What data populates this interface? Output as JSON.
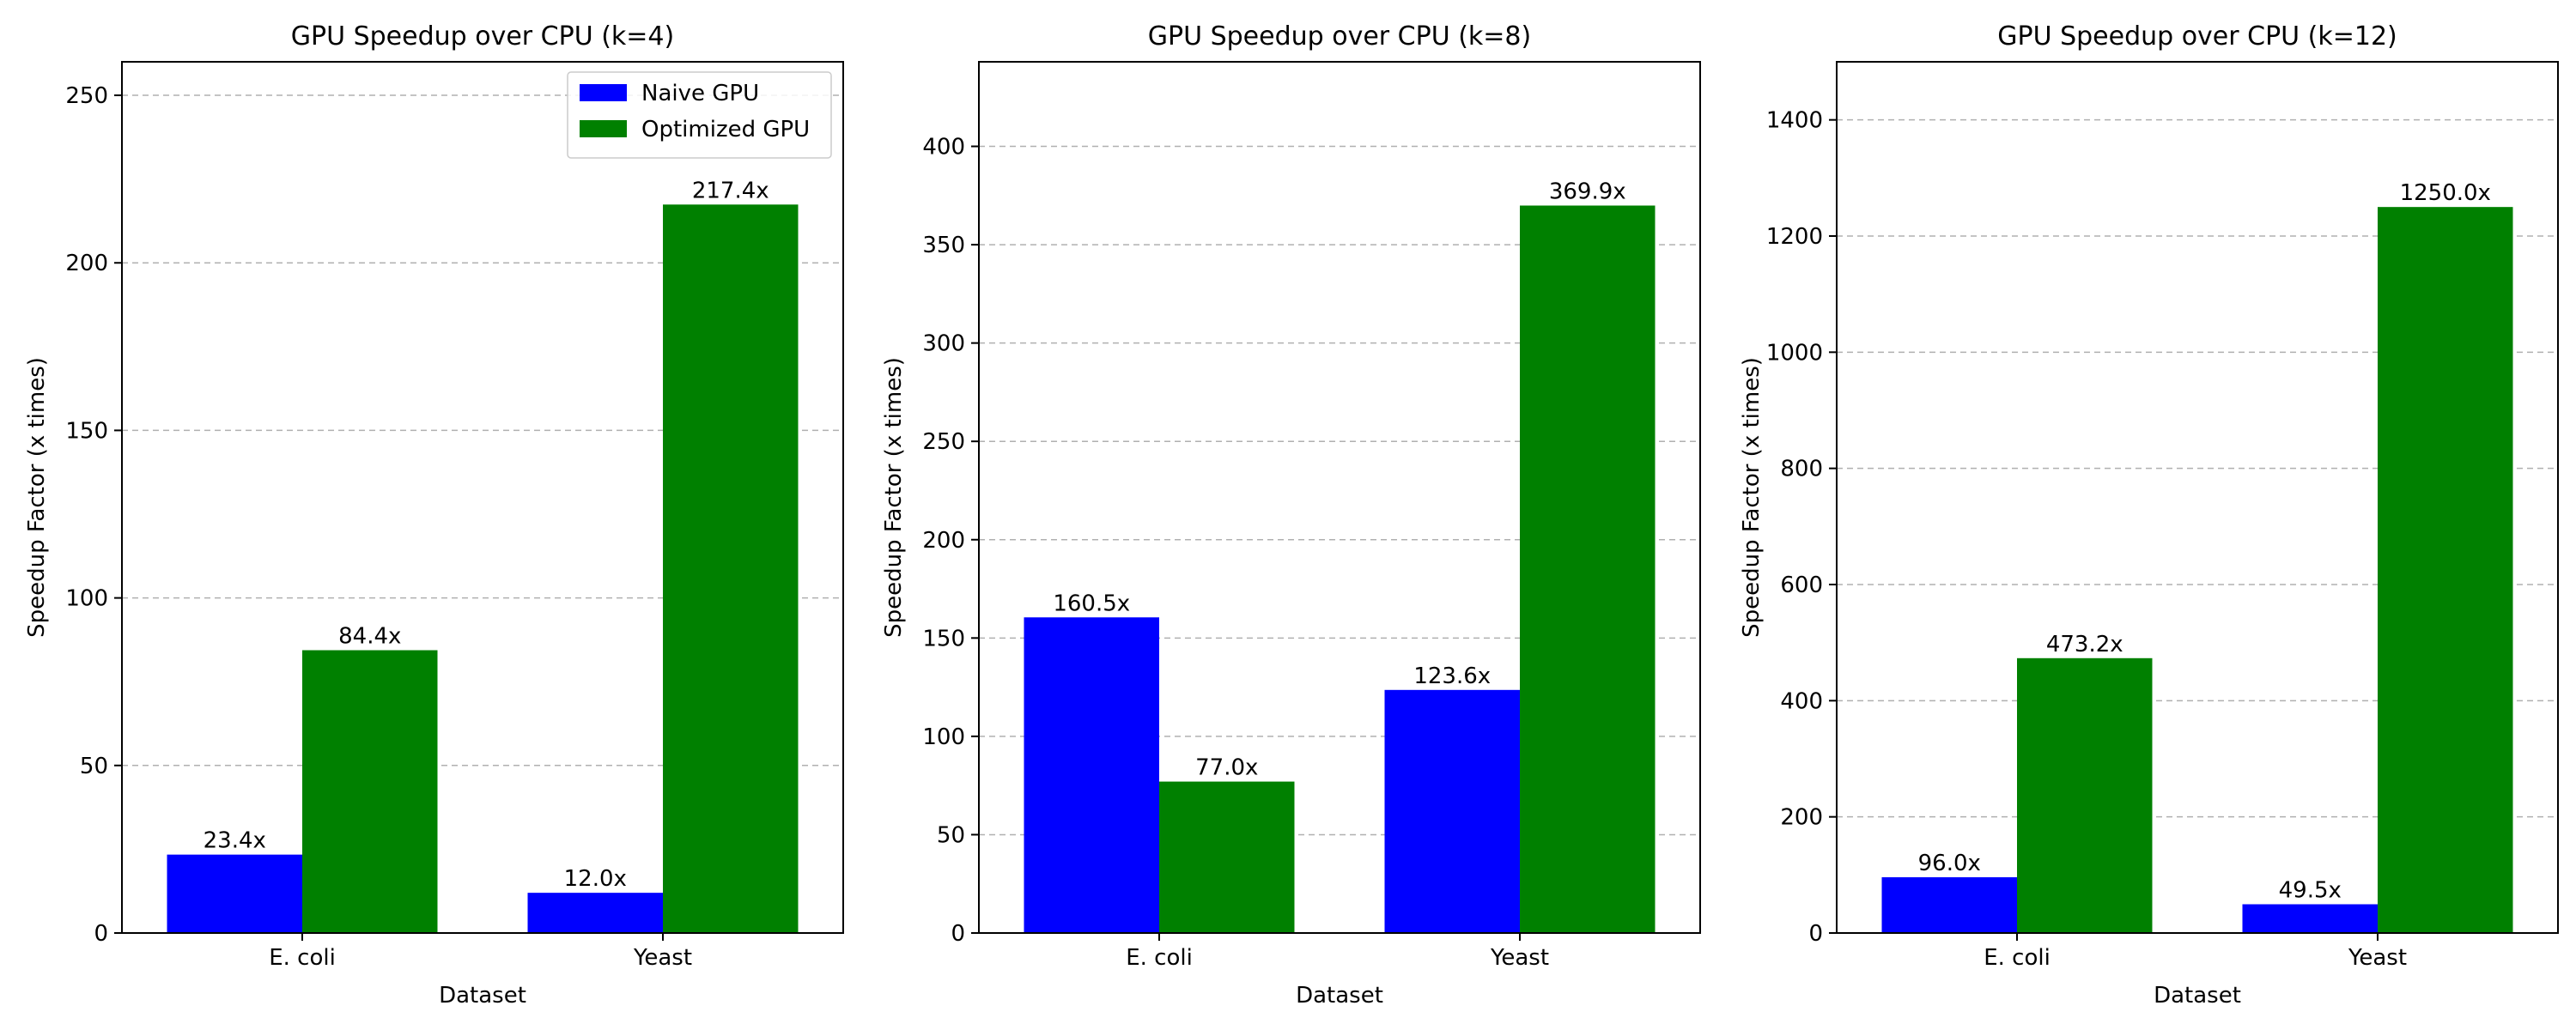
{
  "chart_data": [
    {
      "type": "bar",
      "title": "GPU Speedup over CPU (k=4)",
      "xlabel": "Dataset",
      "ylabel": "Speedup Factor (x times)",
      "categories": [
        "E. coli",
        "Yeast"
      ],
      "series": [
        {
          "name": "Naive GPU",
          "color": "#0000ff",
          "values": [
            23.4,
            12.0
          ],
          "labels": [
            "23.4x",
            "12.0x"
          ]
        },
        {
          "name": "Optimized GPU",
          "color": "#008000",
          "values": [
            84.4,
            217.4
          ],
          "labels": [
            "84.4x",
            "217.4x"
          ]
        }
      ],
      "ylim": [
        0,
        260
      ],
      "yticks": [
        0,
        50,
        100,
        150,
        200,
        250
      ],
      "grid": "y-dashed",
      "legend": "top-right"
    },
    {
      "type": "bar",
      "title": "GPU Speedup over CPU (k=8)",
      "xlabel": "Dataset",
      "ylabel": "Speedup Factor (x times)",
      "categories": [
        "E. coli",
        "Yeast"
      ],
      "series": [
        {
          "name": "Naive GPU",
          "color": "#0000ff",
          "values": [
            160.5,
            123.6
          ],
          "labels": [
            "160.5x",
            "123.6x"
          ]
        },
        {
          "name": "Optimized GPU",
          "color": "#008000",
          "values": [
            77.0,
            369.9
          ],
          "labels": [
            "77.0x",
            "369.9x"
          ]
        }
      ],
      "ylim": [
        0,
        443
      ],
      "yticks": [
        0,
        50,
        100,
        150,
        200,
        250,
        300,
        350,
        400
      ],
      "grid": "y-dashed",
      "legend": "none"
    },
    {
      "type": "bar",
      "title": "GPU Speedup over CPU (k=12)",
      "xlabel": "Dataset",
      "ylabel": "Speedup Factor (x times)",
      "categories": [
        "E. coli",
        "Yeast"
      ],
      "series": [
        {
          "name": "Naive GPU",
          "color": "#0000ff",
          "values": [
            96.0,
            49.5
          ],
          "labels": [
            "96.0x",
            "49.5x"
          ]
        },
        {
          "name": "Optimized GPU",
          "color": "#008000",
          "values": [
            473.2,
            1250.0
          ],
          "labels": [
            "473.2x",
            "1250.0x"
          ]
        }
      ],
      "ylim": [
        0,
        1500
      ],
      "yticks": [
        0,
        200,
        400,
        600,
        800,
        1000,
        1200,
        1400
      ],
      "grid": "y-dashed",
      "legend": "none"
    }
  ]
}
